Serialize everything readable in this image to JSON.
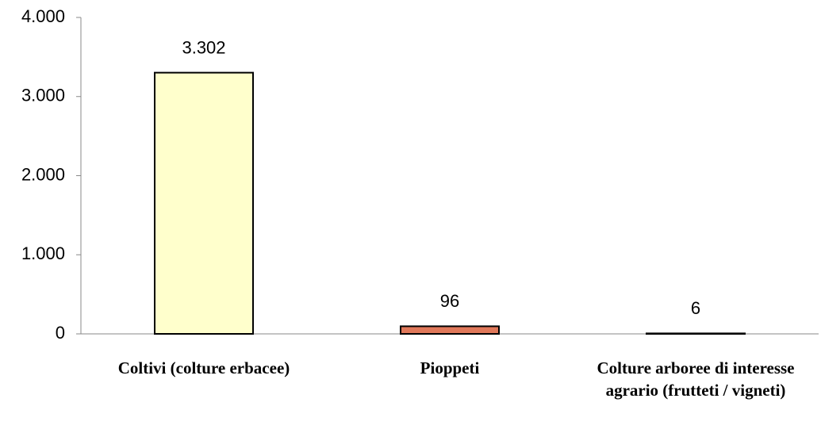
{
  "chart_data": {
    "type": "bar",
    "categories": [
      "Coltivi (colture erbacee)",
      "Pioppeti",
      "Colture arboree di interesse agrario (frutteti / vigneti)"
    ],
    "values": [
      3302,
      96,
      6
    ],
    "value_labels": [
      "3.302",
      "96",
      "6"
    ],
    "colors": [
      "#ffffcc",
      "#e0785a",
      "#ffffcc"
    ],
    "ylim": [
      0,
      4000
    ],
    "yticks": [
      0,
      {
        "value": 1000,
        "label": "1.000"
      },
      {
        "value": 2000,
        "label": "2.000"
      },
      {
        "value": 3000,
        "label": "3.000"
      },
      {
        "value": 4000,
        "label": "4.000"
      }
    ],
    "grid": false
  }
}
